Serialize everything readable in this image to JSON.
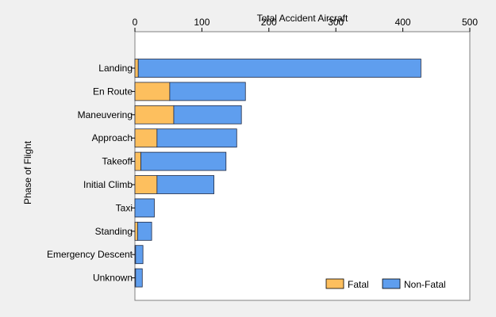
{
  "chart_data": {
    "type": "bar",
    "orientation": "horizontal",
    "stacked": true,
    "xlabel": "Total Accident Aircraft",
    "ylabel": "Phase of Flight",
    "xlim": [
      0,
      500
    ],
    "xticks": [
      0,
      100,
      200,
      300,
      400,
      500
    ],
    "x_axis_position": "top",
    "grid": false,
    "legend_position": "bottom-right",
    "categories": [
      "Landing",
      "En Route",
      "Maneuvering",
      "Approach",
      "Takeoff",
      "Initial Climb",
      "Taxi",
      "Standing",
      "Emergency Descent",
      "Unknown"
    ],
    "series": [
      {
        "name": "Fatal",
        "color": "#fdbf5e",
        "values": [
          5,
          52,
          58,
          33,
          9,
          33,
          0,
          4,
          1,
          1
        ]
      },
      {
        "name": "Non-Fatal",
        "color": "#5f9eee",
        "values": [
          422,
          113,
          101,
          119,
          127,
          85,
          29,
          21,
          11,
          10
        ]
      }
    ]
  }
}
